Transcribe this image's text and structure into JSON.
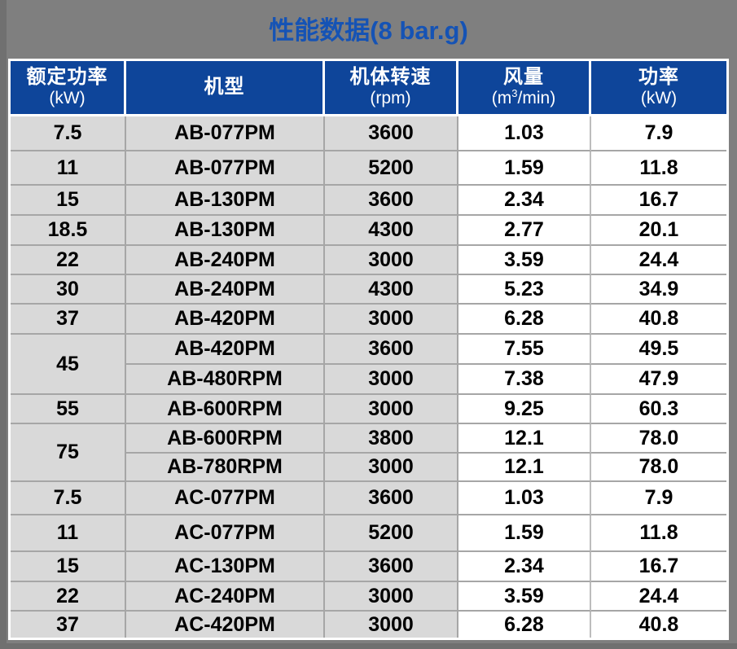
{
  "title": "性能数据(8 bar.g)",
  "table": {
    "headers": [
      {
        "title": "额定功率",
        "unit": "(kW)"
      },
      {
        "title": "机型",
        "unit": ""
      },
      {
        "title": "机体转速",
        "unit": "(rpm)"
      },
      {
        "title": "风量",
        "unit_pre": "(m",
        "unit_sup": "3",
        "unit_post": "/min)"
      },
      {
        "title": "功率",
        "unit": "(kW)"
      }
    ],
    "rows": [
      {
        "rated_power": "7.5",
        "rowspan": 1,
        "model": "AB-077PM",
        "speed": "3600",
        "air_flow": "1.03",
        "power": "7.9"
      },
      {
        "rated_power": "11",
        "rowspan": 1,
        "model": "AB-077PM",
        "speed": "5200",
        "air_flow": "1.59",
        "power": "11.8"
      },
      {
        "rated_power": "15",
        "rowspan": 1,
        "model": "AB-130PM",
        "speed": "3600",
        "air_flow": "2.34",
        "power": "16.7"
      },
      {
        "rated_power": "18.5",
        "rowspan": 1,
        "model": "AB-130PM",
        "speed": "4300",
        "air_flow": "2.77",
        "power": "20.1"
      },
      {
        "rated_power": "22",
        "rowspan": 1,
        "model": "AB-240PM",
        "speed": "3000",
        "air_flow": "3.59",
        "power": "24.4"
      },
      {
        "rated_power": "30",
        "rowspan": 1,
        "model": "AB-240PM",
        "speed": "4300",
        "air_flow": "5.23",
        "power": "34.9"
      },
      {
        "rated_power": "37",
        "rowspan": 1,
        "model": "AB-420PM",
        "speed": "3000",
        "air_flow": "6.28",
        "power": "40.8"
      },
      {
        "rated_power": "45",
        "rowspan": 2,
        "model": "AB-420PM",
        "speed": "3600",
        "air_flow": "7.55",
        "power": "49.5"
      },
      {
        "rated_power": null,
        "rowspan": 0,
        "model": "AB-480RPM",
        "speed": "3000",
        "air_flow": "7.38",
        "power": "47.9"
      },
      {
        "rated_power": "55",
        "rowspan": 1,
        "model": "AB-600RPM",
        "speed": "3000",
        "air_flow": "9.25",
        "power": "60.3"
      },
      {
        "rated_power": "75",
        "rowspan": 2,
        "model": "AB-600RPM",
        "speed": "3800",
        "air_flow": "12.1",
        "power": "78.0"
      },
      {
        "rated_power": null,
        "rowspan": 0,
        "model": "AB-780RPM",
        "speed": "3000",
        "air_flow": "12.1",
        "power": "78.0"
      },
      {
        "rated_power": "7.5",
        "rowspan": 1,
        "model": "AC-077PM",
        "speed": "3600",
        "air_flow": "1.03",
        "power": "7.9"
      },
      {
        "rated_power": "11",
        "rowspan": 1,
        "model": "AC-077PM",
        "speed": "5200",
        "air_flow": "1.59",
        "power": "11.8"
      },
      {
        "rated_power": "15",
        "rowspan": 1,
        "model": "AC-130PM",
        "speed": "3600",
        "air_flow": "2.34",
        "power": "16.7"
      },
      {
        "rated_power": "22",
        "rowspan": 1,
        "model": "AC-240PM",
        "speed": "3000",
        "air_flow": "3.59",
        "power": "24.4"
      },
      {
        "rated_power": "37",
        "rowspan": 1,
        "model": "AC-420PM",
        "speed": "3000",
        "air_flow": "6.28",
        "power": "40.8"
      }
    ]
  },
  "colors": {
    "page_bg": "#7F7F7F",
    "title_text": "#1553B5",
    "header_bg": "#0E459A",
    "header_text": "#FFFFFF",
    "cell_gray": "#D9D9D9",
    "cell_white": "#FFFFFF",
    "border_gray": "#A6A6A6",
    "border_light": "#BDBDBD",
    "table_border": "#FFFFFF",
    "body_text": "#000000"
  }
}
